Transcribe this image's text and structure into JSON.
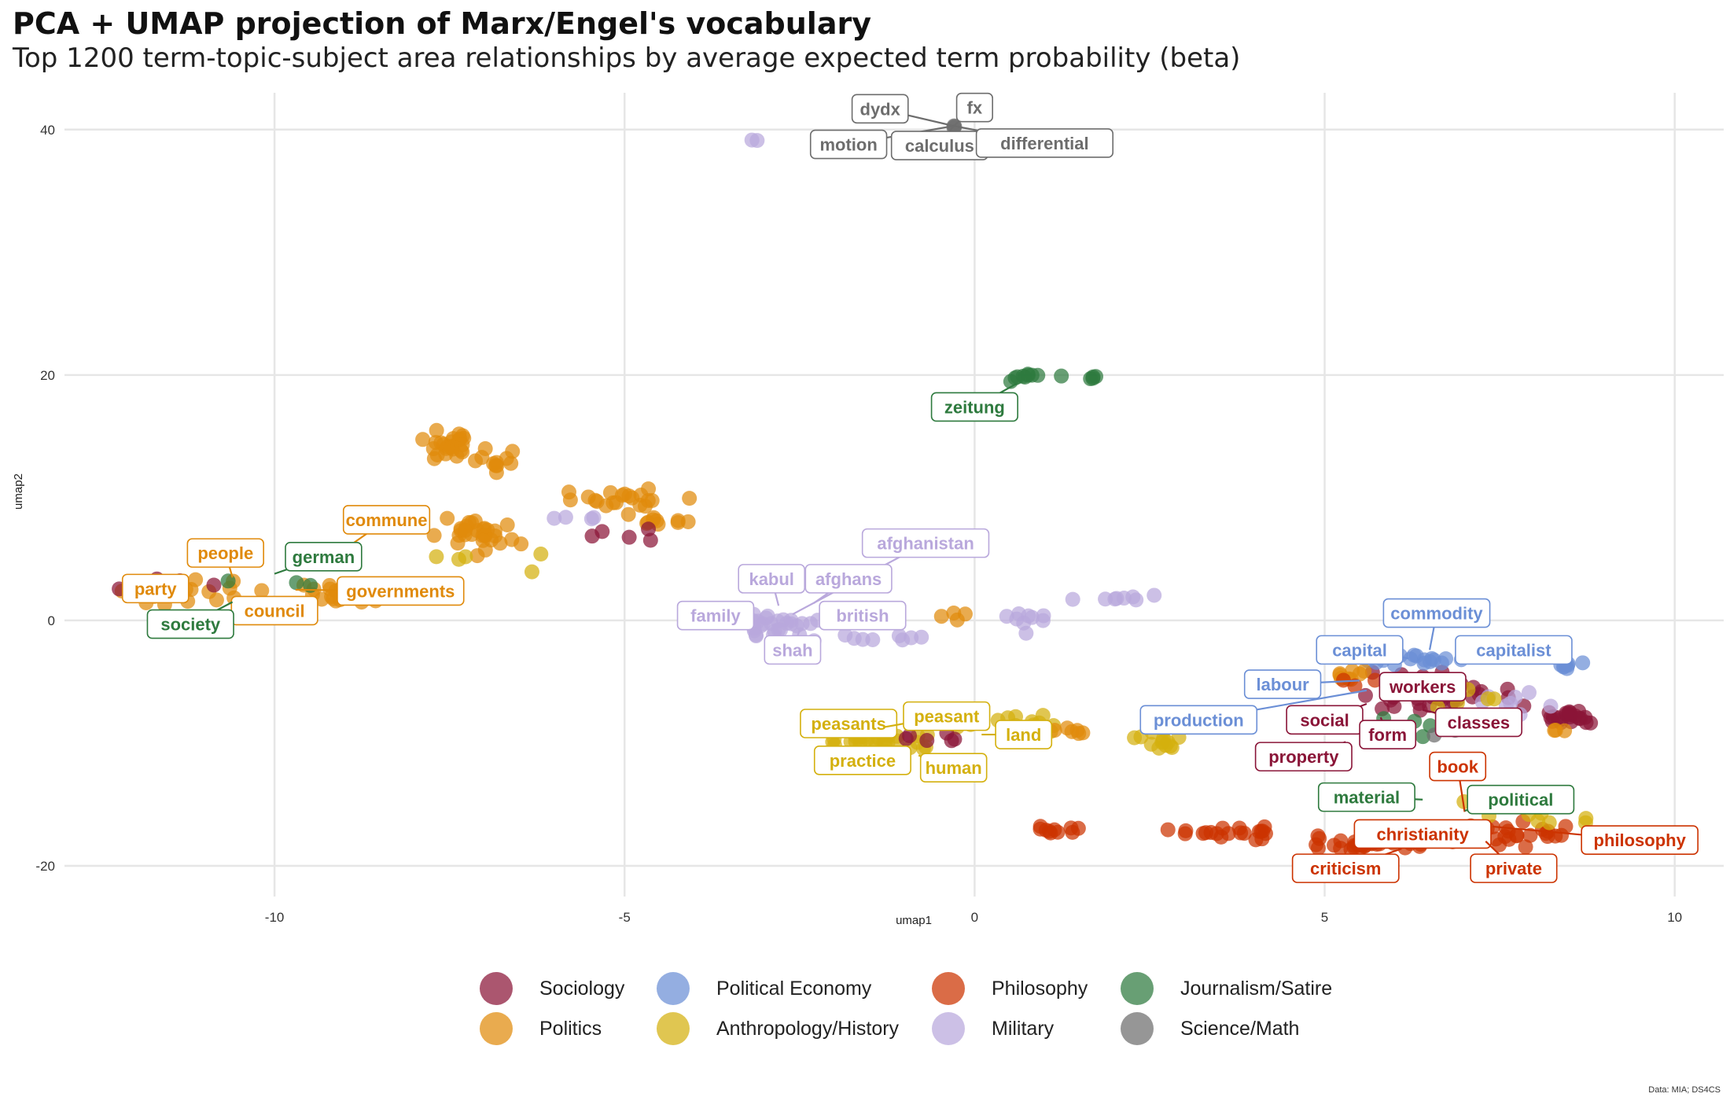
{
  "title": "PCA + UMAP projection of Marx/Engel's vocabulary",
  "subtitle": "Top 1200 term-topic-subject area relationships by average expected term probability (beta)",
  "caption": "Data: MIA; DS4CS",
  "colors": {
    "Sociology": "#8a1538",
    "Politics": "#e08a0b",
    "Political Economy": "#6b8fd6",
    "Anthropology/History": "#d4b00e",
    "Philosophy": "#cc3300",
    "Military": "#b9a8dc",
    "Journalism/Satire": "#2e7a3e",
    "Science/Math": "#6d6d6d"
  },
  "chart_data": {
    "type": "scatter",
    "xlabel": "umap1",
    "ylabel": "umap2",
    "xlim": [
      -13,
      10.7
    ],
    "ylim": [
      -22.5,
      43
    ],
    "x_ticks": [
      "-10",
      "-5",
      "0",
      "5",
      "10"
    ],
    "y_ticks": [
      "-20",
      "0",
      "20",
      "40"
    ],
    "legend": {
      "position": "bottom",
      "items": [
        "Sociology",
        "Politics",
        "Political Economy",
        "Anthropology/History",
        "Philosophy",
        "Military",
        "Journalism/Satire",
        "Science/Math"
      ]
    },
    "clusters": [
      {
        "category": "Science/Math",
        "cx": -0.3,
        "cy": 40.2,
        "sx": 0.05,
        "sy": 0.1,
        "n": 3
      },
      {
        "category": "Military",
        "cx": -3.2,
        "cy": 39.1,
        "sx": 0.25,
        "sy": 0.2,
        "n": 2
      },
      {
        "category": "Journalism/Satire",
        "cx": 0.8,
        "cy": 19.9,
        "sx": 0.55,
        "sy": 0.4,
        "n": 10
      },
      {
        "category": "Journalism/Satire",
        "cx": 1.7,
        "cy": 19.7,
        "sx": 0.1,
        "sy": 0.2,
        "n": 4
      },
      {
        "category": "Politics",
        "cx": -7.5,
        "cy": 14.2,
        "sx": 0.35,
        "sy": 1.0,
        "n": 26
      },
      {
        "category": "Politics",
        "cx": -6.9,
        "cy": 13.0,
        "sx": 0.3,
        "sy": 0.8,
        "n": 10
      },
      {
        "category": "Politics",
        "cx": -5.0,
        "cy": 10.0,
        "sx": 0.6,
        "sy": 0.6,
        "n": 20
      },
      {
        "category": "Politics",
        "cx": -4.5,
        "cy": 8.2,
        "sx": 0.4,
        "sy": 0.4,
        "n": 10
      },
      {
        "category": "Politics",
        "cx": -7.1,
        "cy": 6.8,
        "sx": 0.55,
        "sy": 1.1,
        "n": 30
      },
      {
        "category": "Politics",
        "cx": -11.5,
        "cy": 2.6,
        "sx": 0.7,
        "sy": 0.8,
        "n": 28
      },
      {
        "category": "Politics",
        "cx": -9.0,
        "cy": 2.2,
        "sx": 0.9,
        "sy": 0.7,
        "n": 30
      },
      {
        "category": "Sociology",
        "cx": -11.5,
        "cy": 3.2,
        "sx": 0.7,
        "sy": 0.6,
        "n": 6
      },
      {
        "category": "Sociology",
        "cx": -5.3,
        "cy": 7.0,
        "sx": 0.8,
        "sy": 0.5,
        "n": 5
      },
      {
        "category": "Journalism/Satire",
        "cx": -10.0,
        "cy": 3.0,
        "sx": 0.8,
        "sy": 0.5,
        "n": 3
      },
      {
        "category": "Anthropology/History",
        "cx": -7.0,
        "cy": 5.0,
        "sx": 0.8,
        "sy": 0.7,
        "n": 5
      },
      {
        "category": "Military",
        "cx": -5.5,
        "cy": 8.3,
        "sx": 0.5,
        "sy": 0.3,
        "n": 4
      },
      {
        "category": "Military",
        "cx": -2.7,
        "cy": -0.4,
        "sx": 0.7,
        "sy": 0.9,
        "n": 28
      },
      {
        "category": "Military",
        "cx": -1.4,
        "cy": -1.4,
        "sx": 0.6,
        "sy": 0.3,
        "n": 8
      },
      {
        "category": "Military",
        "cx": 0.7,
        "cy": 0.0,
        "sx": 0.3,
        "sy": 1.0,
        "n": 9
      },
      {
        "category": "Military",
        "cx": 2.0,
        "cy": 1.8,
        "sx": 0.4,
        "sy": 0.3,
        "n": 8
      },
      {
        "category": "Politics",
        "cx": -0.2,
        "cy": 0.4,
        "sx": 0.3,
        "sy": 0.5,
        "n": 4
      },
      {
        "category": "Anthropology/History",
        "cx": -1.3,
        "cy": -9.8,
        "sx": 0.6,
        "sy": 0.7,
        "n": 30
      },
      {
        "category": "Anthropology/History",
        "cx": 0.6,
        "cy": -8.4,
        "sx": 0.8,
        "sy": 0.6,
        "n": 18
      },
      {
        "category": "Anthropology/History",
        "cx": 2.6,
        "cy": -9.7,
        "sx": 0.3,
        "sy": 0.8,
        "n": 15
      },
      {
        "category": "Politics",
        "cx": 1.3,
        "cy": -9.0,
        "sx": 0.5,
        "sy": 0.3,
        "n": 8
      },
      {
        "category": "Sociology",
        "cx": -0.5,
        "cy": -9.8,
        "sx": 0.4,
        "sy": 0.5,
        "n": 6
      },
      {
        "category": "Philosophy",
        "cx": 1.2,
        "cy": -17.0,
        "sx": 0.4,
        "sy": 0.3,
        "n": 10
      },
      {
        "category": "Philosophy",
        "cx": 3.6,
        "cy": -17.3,
        "sx": 0.6,
        "sy": 0.4,
        "n": 20
      },
      {
        "category": "Philosophy",
        "cx": 5.6,
        "cy": -18.3,
        "sx": 0.8,
        "sy": 0.5,
        "n": 30
      },
      {
        "category": "Philosophy",
        "cx": 7.5,
        "cy": -17.5,
        "sx": 0.8,
        "sy": 0.9,
        "n": 30
      },
      {
        "category": "Anthropology/History",
        "cx": 7.8,
        "cy": -16.0,
        "sx": 1.0,
        "sy": 1.0,
        "n": 10
      },
      {
        "category": "Sociology",
        "cx": 6.4,
        "cy": -6.0,
        "sx": 1.0,
        "sy": 1.4,
        "n": 40
      },
      {
        "category": "Sociology",
        "cx": 8.5,
        "cy": -7.8,
        "sx": 0.3,
        "sy": 0.6,
        "n": 22
      },
      {
        "category": "Political Economy",
        "cx": 6.3,
        "cy": -3.2,
        "sx": 0.6,
        "sy": 0.4,
        "n": 18
      },
      {
        "category": "Political Economy",
        "cx": 8.5,
        "cy": -3.6,
        "sx": 0.3,
        "sy": 0.3,
        "n": 8
      },
      {
        "category": "Military",
        "cx": 7.6,
        "cy": -6.8,
        "sx": 0.6,
        "sy": 1.0,
        "n": 8
      },
      {
        "category": "Journalism/Satire",
        "cx": 6.6,
        "cy": -8.5,
        "sx": 0.8,
        "sy": 1.5,
        "n": 6
      },
      {
        "category": "Science/Math",
        "cx": 6.5,
        "cy": -10.0,
        "sx": 1.0,
        "sy": 3.0,
        "n": 4
      },
      {
        "category": "Politics",
        "cx": 5.4,
        "cy": -4.6,
        "sx": 0.3,
        "sy": 0.4,
        "n": 8
      },
      {
        "category": "Politics",
        "cx": 8.4,
        "cy": -9.0,
        "sx": 0.3,
        "sy": 0.3,
        "n": 3
      },
      {
        "category": "Anthropology/History",
        "cx": 7.0,
        "cy": -6.5,
        "sx": 0.6,
        "sy": 0.8,
        "n": 5
      },
      {
        "category": "Philosophy",
        "cx": 5.7,
        "cy": -5.2,
        "sx": 0.4,
        "sy": 0.4,
        "n": 4
      }
    ],
    "labels": [
      {
        "text": "dydx",
        "category": "Science/Math",
        "x": -0.3,
        "y": 40.3,
        "lx": -1.35,
        "ly": 41.7
      },
      {
        "text": "fx",
        "category": "Science/Math",
        "x": -0.3,
        "y": 40.3,
        "lx": 0.0,
        "ly": 41.8
      },
      {
        "text": "motion",
        "category": "Science/Math",
        "x": -0.3,
        "y": 40.3,
        "lx": -1.8,
        "ly": 38.8
      },
      {
        "text": "calculus",
        "category": "Science/Math",
        "x": -0.3,
        "y": 40.3,
        "lx": -0.5,
        "ly": 38.7
      },
      {
        "text": "differential",
        "category": "Science/Math",
        "x": -0.3,
        "y": 40.3,
        "lx": 1.0,
        "ly": 38.9
      },
      {
        "text": "zeitung",
        "category": "Journalism/Satire",
        "x": 0.6,
        "y": 19.3,
        "lx": 0.0,
        "ly": 17.4
      },
      {
        "text": "commune",
        "category": "Politics",
        "x": -9.4,
        "y": 4.2,
        "lx": -8.4,
        "ly": 8.2
      },
      {
        "text": "people",
        "category": "Politics",
        "x": -10.6,
        "y": 3.5,
        "lx": -10.7,
        "ly": 5.5
      },
      {
        "text": "german",
        "category": "Journalism/Satire",
        "x": -10.0,
        "y": 3.8,
        "lx": -9.3,
        "ly": 5.2
      },
      {
        "text": "party",
        "category": "Politics",
        "x": -11.4,
        "y": 3.0,
        "lx": -11.7,
        "ly": 2.6
      },
      {
        "text": "governments",
        "category": "Politics",
        "x": -9.7,
        "y": 2.5,
        "lx": -8.2,
        "ly": 2.4
      },
      {
        "text": "council",
        "category": "Politics",
        "x": -10.3,
        "y": 1.5,
        "lx": -10.0,
        "ly": 0.8
      },
      {
        "text": "society",
        "category": "Journalism/Satire",
        "x": -10.6,
        "y": 1.5,
        "lx": -11.2,
        "ly": -0.3
      },
      {
        "text": "afghanistan",
        "category": "Military",
        "x": -2.6,
        "y": 0.5,
        "lx": -0.7,
        "ly": 6.3
      },
      {
        "text": "kabul",
        "category": "Military",
        "x": -2.8,
        "y": 1.2,
        "lx": -2.9,
        "ly": 3.4
      },
      {
        "text": "afghans",
        "category": "Military",
        "x": -2.3,
        "y": 1.4,
        "lx": -1.8,
        "ly": 3.4
      },
      {
        "text": "family",
        "category": "Military",
        "x": -3.4,
        "y": 0.4,
        "lx": -3.7,
        "ly": 0.4
      },
      {
        "text": "british",
        "category": "Military",
        "x": -1.9,
        "y": 0.1,
        "lx": -1.6,
        "ly": 0.4
      },
      {
        "text": "shah",
        "category": "Military",
        "x": -2.5,
        "y": -0.8,
        "lx": -2.6,
        "ly": -2.4
      },
      {
        "text": "commodity",
        "category": "Political Economy",
        "x": 6.5,
        "y": -2.4,
        "lx": 6.6,
        "ly": 0.6
      },
      {
        "text": "capital",
        "category": "Political Economy",
        "x": 6.2,
        "y": -3.1,
        "lx": 5.5,
        "ly": -2.4
      },
      {
        "text": "capitalist",
        "category": "Political Economy",
        "x": 7.2,
        "y": -3.3,
        "lx": 7.7,
        "ly": -2.4
      },
      {
        "text": "labour",
        "category": "Political Economy",
        "x": 5.5,
        "y": -4.9,
        "lx": 4.4,
        "ly": -5.2
      },
      {
        "text": "workers",
        "category": "Sociology",
        "x": 6.6,
        "y": -4.9,
        "lx": 6.4,
        "ly": -5.4
      },
      {
        "text": "production",
        "category": "Political Economy",
        "x": 5.6,
        "y": -5.7,
        "lx": 3.2,
        "ly": -8.1
      },
      {
        "text": "social",
        "category": "Sociology",
        "x": 5.6,
        "y": -6.8,
        "lx": 5.0,
        "ly": -8.1
      },
      {
        "text": "classes",
        "category": "Sociology",
        "x": 6.4,
        "y": -7.3,
        "lx": 7.2,
        "ly": -8.3
      },
      {
        "text": "form",
        "category": "Sociology",
        "x": 5.8,
        "y": -7.9,
        "lx": 5.9,
        "ly": -9.3
      },
      {
        "text": "property",
        "category": "Sociology",
        "x": 5.3,
        "y": -9.9,
        "lx": 4.7,
        "ly": -11.1
      },
      {
        "text": "peasants",
        "category": "Anthropology/History",
        "x": -1.7,
        "y": -9.5,
        "lx": -1.8,
        "ly": -8.4
      },
      {
        "text": "peasant",
        "category": "Anthropology/History",
        "x": -1.3,
        "y": -8.7,
        "lx": -0.4,
        "ly": -7.8
      },
      {
        "text": "land",
        "category": "Anthropology/History",
        "x": 0.1,
        "y": -9.3,
        "lx": 0.7,
        "ly": -9.3
      },
      {
        "text": "practice",
        "category": "Anthropology/History",
        "x": -1.3,
        "y": -10.8,
        "lx": -1.6,
        "ly": -11.4
      },
      {
        "text": "human",
        "category": "Anthropology/History",
        "x": -0.8,
        "y": -11.0,
        "lx": -0.3,
        "ly": -12.0
      },
      {
        "text": "book",
        "category": "Philosophy",
        "x": 7.0,
        "y": -15.6,
        "lx": 6.9,
        "ly": -11.9
      },
      {
        "text": "material",
        "category": "Journalism/Satire",
        "x": 6.4,
        "y": -14.6,
        "lx": 5.6,
        "ly": -14.4
      },
      {
        "text": "political",
        "category": "Journalism/Satire",
        "x": 7.0,
        "y": -15.5,
        "lx": 7.8,
        "ly": -14.6
      },
      {
        "text": "christianity",
        "category": "Philosophy",
        "x": 6.0,
        "y": -17.3,
        "lx": 6.4,
        "ly": -17.4
      },
      {
        "text": "philosophy",
        "category": "Philosophy",
        "x": 7.4,
        "y": -16.8,
        "lx": 9.5,
        "ly": -17.9
      },
      {
        "text": "criticism",
        "category": "Philosophy",
        "x": 6.1,
        "y": -18.6,
        "lx": 5.3,
        "ly": -20.2
      },
      {
        "text": "private",
        "category": "Philosophy",
        "x": 7.3,
        "y": -18.0,
        "lx": 7.7,
        "ly": -20.2
      }
    ]
  }
}
